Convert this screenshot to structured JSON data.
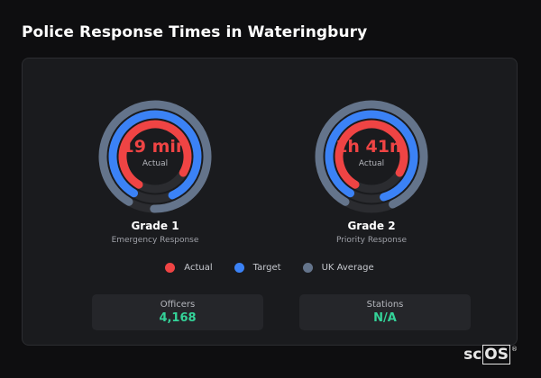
{
  "title": "Police Response Times in Wateringbury",
  "colors": {
    "actual": "#ef4444",
    "target": "#3b82f6",
    "uk_average": "#64748b"
  },
  "gauges": [
    {
      "value": "19 min",
      "sub": "Actual",
      "grade": "Grade 1",
      "description": "Emergency Response",
      "fractions": {
        "actual": 0.75,
        "target": 0.85,
        "uk_average": 0.92
      }
    },
    {
      "value": "1h 41m",
      "sub": "Actual",
      "grade": "Grade 2",
      "description": "Priority Response",
      "fractions": {
        "actual": 0.75,
        "target": 0.87,
        "uk_average": 0.85
      }
    }
  ],
  "legend": [
    {
      "label": "Actual",
      "color": "#ef4444"
    },
    {
      "label": "Target",
      "color": "#3b82f6"
    },
    {
      "label": "UK Average",
      "color": "#64748b"
    }
  ],
  "stats": [
    {
      "label": "Officers",
      "value": "4,168"
    },
    {
      "label": "Stations",
      "value": "N/A"
    }
  ],
  "logo": {
    "prefix": "sc",
    "boxed": "OS",
    "mark": "®"
  }
}
